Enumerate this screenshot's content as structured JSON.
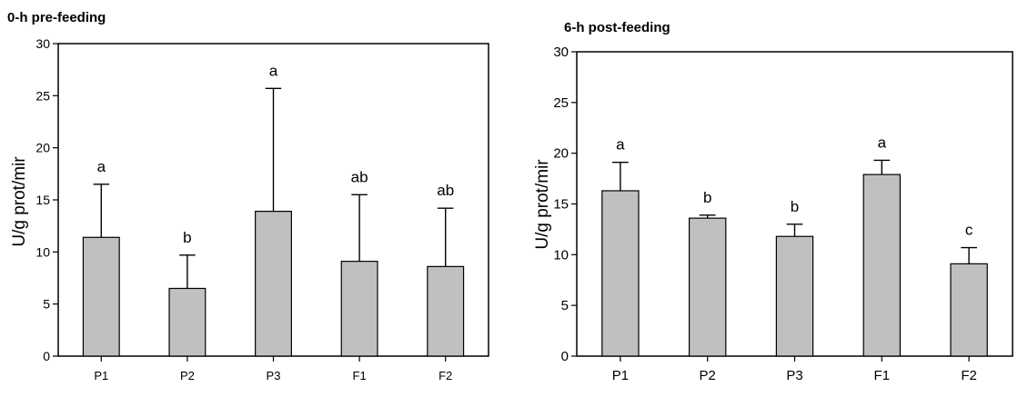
{
  "charts": [
    {
      "title": "0-h pre-feeding",
      "ylabel": "U/g prot/mir"
    },
    {
      "title": "6-h post-feeding",
      "ylabel": "U/g prot/mir"
    }
  ],
  "colors": {
    "bar_fill": "#c0c0c0",
    "bar_stroke": "#000000",
    "axis": "#000000"
  },
  "chart_data": [
    {
      "type": "bar",
      "title": "0-h pre-feeding",
      "xlabel": "",
      "ylabel": "U/g prot/mir",
      "ylim": [
        0,
        30
      ],
      "yticks": [
        0,
        5,
        10,
        15,
        20,
        25,
        30
      ],
      "grid": false,
      "legend": "none",
      "categories": [
        "P1",
        "P2",
        "P3",
        "F1",
        "F2"
      ],
      "values": [
        11.4,
        6.5,
        13.9,
        9.1,
        8.6
      ],
      "error_upper": [
        5.1,
        3.2,
        11.8,
        6.4,
        5.6
      ],
      "labels": [
        "a",
        "b",
        "a",
        "ab",
        "ab"
      ]
    },
    {
      "type": "bar",
      "title": "6-h post-feeding",
      "xlabel": "",
      "ylabel": "U/g prot/mir",
      "ylim": [
        0,
        30
      ],
      "yticks": [
        0,
        5,
        10,
        15,
        20,
        25,
        30
      ],
      "grid": false,
      "legend": "none",
      "categories": [
        "P1",
        "P2",
        "P3",
        "F1",
        "F2"
      ],
      "values": [
        16.3,
        13.6,
        11.8,
        17.9,
        9.1
      ],
      "error_upper": [
        2.8,
        0.3,
        1.2,
        1.4,
        1.6
      ],
      "labels": [
        "a",
        "b",
        "b",
        "a",
        "c"
      ]
    }
  ]
}
